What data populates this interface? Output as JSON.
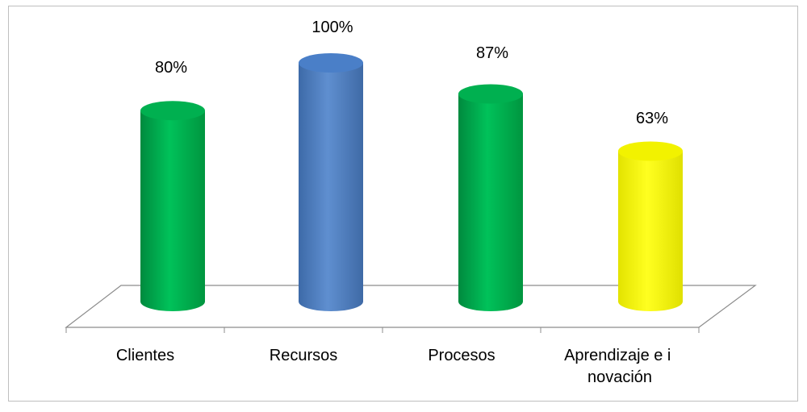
{
  "chart_data": {
    "type": "bar",
    "style": "3d-cylinder",
    "title": "",
    "xlabel": "",
    "ylabel": "",
    "ylim": [
      0,
      100
    ],
    "grid": false,
    "legend": "none",
    "categories": [
      "Clientes",
      "Recursos",
      "Procesos",
      "Aprendizaje e innovación"
    ],
    "values": [
      80,
      100,
      87,
      63
    ],
    "data_labels": [
      "80%",
      "100%",
      "87%",
      "63%"
    ],
    "bar_colors": [
      "#00B050",
      "#4F81BD",
      "#00B050",
      "#FFFF00"
    ]
  }
}
